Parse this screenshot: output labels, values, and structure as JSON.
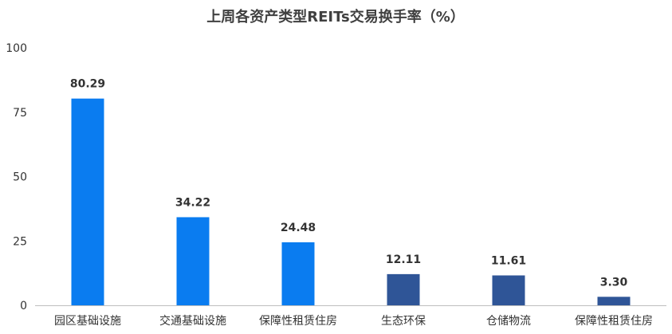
{
  "chart_data": {
    "type": "bar",
    "title": "上周各资产类型REITs交易换手率（%）",
    "xlabel": "",
    "ylabel": "",
    "ylim": [
      0,
      100
    ],
    "yticks": [
      0,
      25,
      50,
      75,
      100
    ],
    "grid": false,
    "categories": [
      "园区基础设施",
      "交通基础设施",
      "保障性租赁住房",
      "生态环保",
      "仓储物流",
      "保障性租赁住房"
    ],
    "values": [
      80.29,
      34.22,
      24.48,
      12.11,
      11.61,
      3.3
    ],
    "value_labels": [
      "80.29",
      "34.22",
      "24.48",
      "12.11",
      "11.61",
      "3.30"
    ],
    "bar_colors": [
      "#0a7cf0",
      "#0a7cf0",
      "#0a7cf0",
      "#2f5597",
      "#2f5597",
      "#2f5597"
    ]
  }
}
